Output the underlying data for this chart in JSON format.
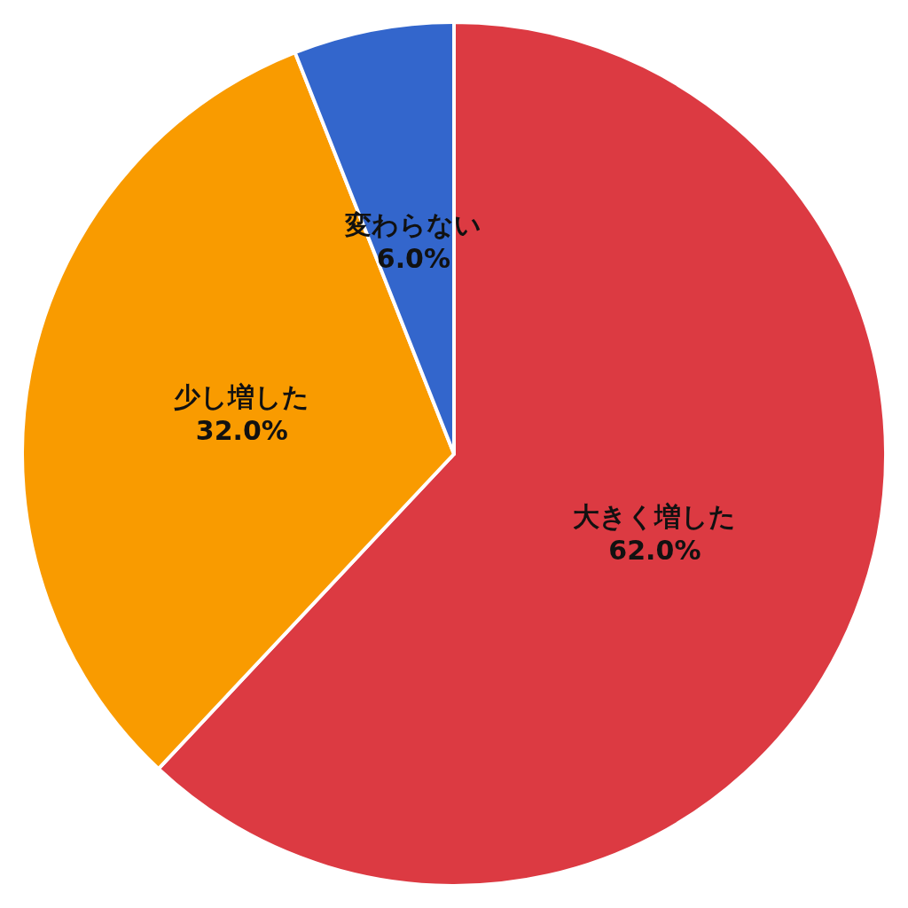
{
  "chart_data": {
    "type": "pie",
    "categories": [
      "大きく増した",
      "少し増した",
      "変わらない"
    ],
    "values": [
      62,
      32,
      6
    ],
    "colors": [
      "#dc3a42",
      "#f99b00",
      "#3366cc"
    ],
    "value_labels": [
      "62.0%",
      "32.0%",
      "6.0%"
    ],
    "legend": false
  }
}
